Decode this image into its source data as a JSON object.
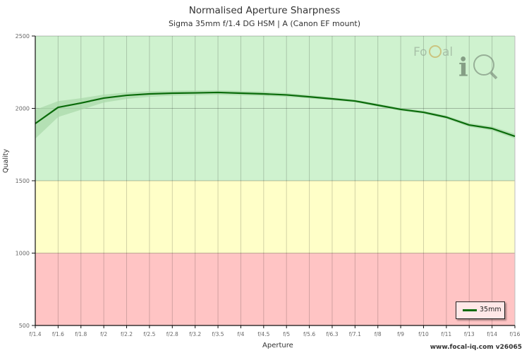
{
  "header": {
    "title": "Normalised Aperture Sharpness",
    "subtitle": "Sigma 35mm f/1.4 DG HSM | A (Canon EF mount)"
  },
  "footer": {
    "credit": "www.focal-iq.com  v26065"
  },
  "logo": {
    "text_left": "Fo",
    "text_right": "al",
    "big_letter": "i"
  },
  "colors": {
    "zone_good": "#cff2cf",
    "zone_ok": "#ffffc8",
    "zone_bad": "#ffc4c4",
    "line": "#0a6b0a",
    "band": "#a8d8a8"
  },
  "chart_data": {
    "type": "line",
    "title": "Normalised Aperture Sharpness",
    "subtitle": "Sigma 35mm f/1.4 DG HSM | A (Canon EF mount)",
    "xlabel": "Aperture",
    "ylabel": "Quality",
    "ylim": [
      500,
      2500
    ],
    "yticks": [
      500,
      1000,
      1500,
      2000,
      2500
    ],
    "grid": true,
    "legend_position": "bottom-right",
    "zones": [
      {
        "from": 1500,
        "to": 2500,
        "color": "green"
      },
      {
        "from": 1000,
        "to": 1500,
        "color": "yellow"
      },
      {
        "from": 500,
        "to": 1000,
        "color": "red"
      }
    ],
    "categories": [
      "f/1.4",
      "f/1.6",
      "f/1.8",
      "f/2",
      "f/2.2",
      "f/2.5",
      "f/2.8",
      "f/3.2",
      "f/3.5",
      "f/4",
      "f/4.5",
      "f/5",
      "f/5.6",
      "f/6.3",
      "f/7.1",
      "f/8",
      "f/9",
      "f/10",
      "f/11",
      "f/13",
      "f/14",
      "f/16"
    ],
    "series": [
      {
        "name": "35mm",
        "values": [
          1895,
          2007,
          2037,
          2071,
          2090,
          2100,
          2105,
          2107,
          2110,
          2105,
          2100,
          2093,
          2080,
          2066,
          2051,
          2022,
          1993,
          1973,
          1939,
          1885,
          1861,
          1807
        ],
        "band_upper": [
          1990,
          2050,
          2070,
          2095,
          2110,
          2118,
          2122,
          2124,
          2125,
          2120,
          2115,
          2106,
          2092,
          2076,
          2060,
          2032,
          2003,
          1983,
          1950,
          1898,
          1875,
          1825
        ],
        "band_lower": [
          1790,
          1940,
          1990,
          2040,
          2065,
          2080,
          2088,
          2091,
          2094,
          2090,
          2085,
          2080,
          2068,
          2056,
          2042,
          2012,
          1983,
          1963,
          1928,
          1872,
          1847,
          1790
        ]
      }
    ]
  }
}
